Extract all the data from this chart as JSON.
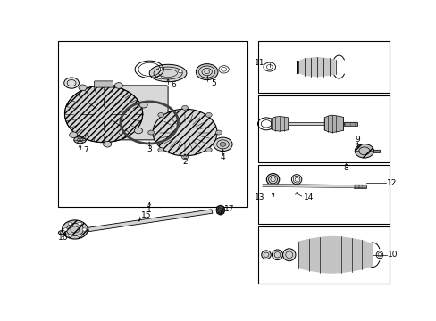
{
  "fig_width": 4.89,
  "fig_height": 3.6,
  "dpi": 100,
  "bg": "#ffffff",
  "lc": "#000000",
  "gray_fill": "#d8d8d8",
  "dark_fill": "#555555",
  "boxes": {
    "main": [
      0.01,
      0.32,
      0.57,
      0.99
    ],
    "b11": [
      0.6,
      0.78,
      0.99,
      0.99
    ],
    "b8": [
      0.6,
      0.5,
      0.99,
      0.77
    ],
    "b12": [
      0.6,
      0.25,
      0.99,
      0.49
    ],
    "b10": [
      0.6,
      0.01,
      0.99,
      0.24
    ]
  },
  "label_fs": 6.5
}
